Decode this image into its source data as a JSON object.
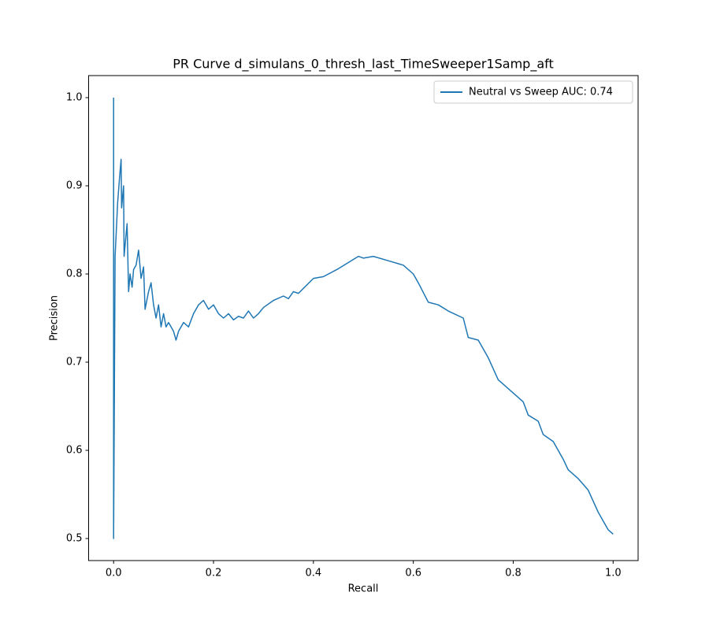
{
  "chart_data": {
    "type": "line",
    "title": "PR Curve d_simulans_0_thresh_last_TimeSweeper1Samp_aft",
    "x_label": "Recall",
    "y_label": "Precision",
    "x": [
      0,
      0,
      0.003,
      0.008,
      0.012,
      0.015,
      0.016,
      0.02,
      0.021,
      0.025,
      0.027,
      0.03,
      0.033,
      0.037,
      0.04,
      0.045,
      0.05,
      0.055,
      0.06,
      0.063,
      0.07,
      0.075,
      0.08,
      0.085,
      0.09,
      0.095,
      0.1,
      0.105,
      0.11,
      0.12,
      0.125,
      0.13,
      0.14,
      0.15,
      0.16,
      0.17,
      0.18,
      0.19,
      0.2,
      0.21,
      0.22,
      0.23,
      0.24,
      0.25,
      0.26,
      0.27,
      0.28,
      0.29,
      0.3,
      0.32,
      0.34,
      0.35,
      0.36,
      0.37,
      0.4,
      0.42,
      0.45,
      0.49,
      0.5,
      0.52,
      0.55,
      0.58,
      0.6,
      0.61,
      0.63,
      0.65,
      0.67,
      0.7,
      0.71,
      0.73,
      0.75,
      0.77,
      0.8,
      0.82,
      0.83,
      0.85,
      0.86,
      0.88,
      0.9,
      0.91,
      0.93,
      0.95,
      0.97,
      0.98,
      0.99,
      1.0
    ],
    "series": [
      {
        "name": "Neutral vs Sweep AUC: 0.74",
        "color": "#1f77b4",
        "values": [
          1.0,
          0.5,
          0.82,
          0.88,
          0.91,
          0.93,
          0.875,
          0.9,
          0.82,
          0.845,
          0.857,
          0.78,
          0.8,
          0.785,
          0.805,
          0.81,
          0.827,
          0.795,
          0.808,
          0.76,
          0.78,
          0.79,
          0.765,
          0.75,
          0.765,
          0.74,
          0.755,
          0.74,
          0.745,
          0.735,
          0.725,
          0.735,
          0.745,
          0.74,
          0.755,
          0.765,
          0.77,
          0.76,
          0.765,
          0.755,
          0.75,
          0.755,
          0.748,
          0.752,
          0.75,
          0.758,
          0.75,
          0.755,
          0.762,
          0.77,
          0.775,
          0.772,
          0.78,
          0.778,
          0.795,
          0.797,
          0.806,
          0.82,
          0.818,
          0.82,
          0.815,
          0.81,
          0.8,
          0.79,
          0.768,
          0.765,
          0.758,
          0.75,
          0.728,
          0.725,
          0.705,
          0.68,
          0.665,
          0.655,
          0.64,
          0.633,
          0.618,
          0.61,
          0.59,
          0.578,
          0.568,
          0.555,
          0.53,
          0.52,
          0.51,
          0.505
        ]
      }
    ],
    "xlim": [
      -0.05,
      1.05
    ],
    "ylim": [
      0.475,
      1.025
    ],
    "xticks": [
      {
        "value": 0,
        "label": "0.0"
      },
      0.2,
      0.4,
      0.6,
      0.8,
      {
        "value": 1,
        "label": "1.0"
      }
    ],
    "yticks": [
      0.5,
      0.6,
      0.7,
      0.8,
      0.9,
      {
        "value": 1,
        "label": "1.0"
      }
    ],
    "legend": "upper right"
  }
}
